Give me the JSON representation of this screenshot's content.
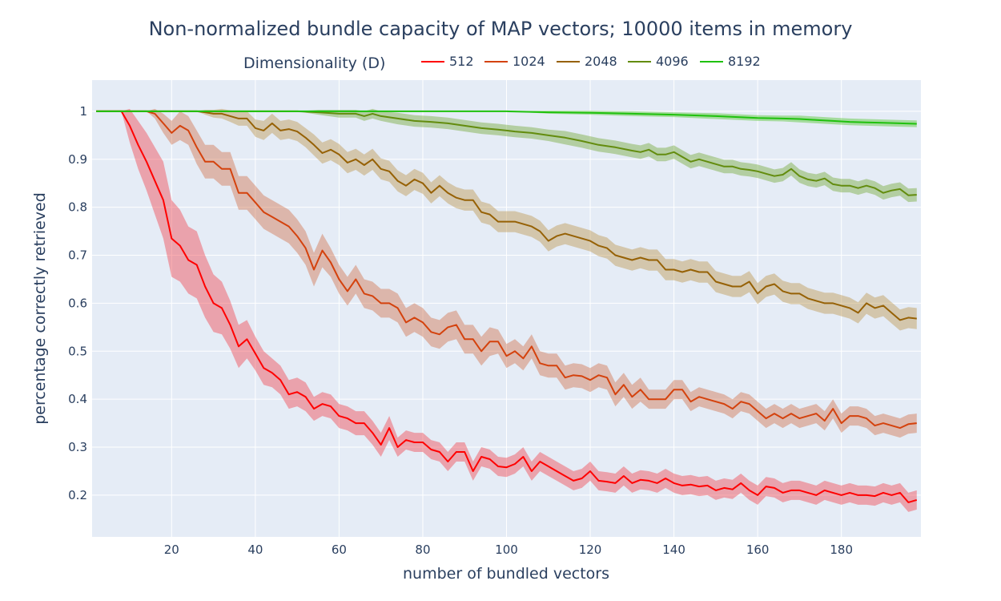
{
  "chart_data": {
    "type": "line",
    "title": "Non-normalized bundle capacity of MAP vectors; 10000 items in memory",
    "xlabel": "number of bundled vectors",
    "ylabel": "percentage correctly retrieved",
    "xlim": [
      1,
      199
    ],
    "ylim": [
      0.113,
      1.065
    ],
    "x_ticks": [
      20,
      40,
      60,
      80,
      100,
      120,
      140,
      160,
      180
    ],
    "y_ticks": [
      0.2,
      0.3,
      0.4,
      0.5,
      0.6,
      0.7,
      0.8,
      0.9,
      1
    ],
    "y_tick_labels": [
      "0.2",
      "0.3",
      "0.4",
      "0.5",
      "0.6",
      "0.7",
      "0.8",
      "0.9",
      "1"
    ],
    "grid": true,
    "legend": {
      "title": "Dimensionality (D)",
      "placement": "top"
    },
    "plot_background": "#e5ecf6",
    "series": [
      {
        "name": "512",
        "color": "#ff0000",
        "band_color": "rgba(240,60,70,0.42)",
        "x": [
          2,
          8,
          10,
          12,
          14,
          16,
          18,
          20,
          22,
          24,
          26,
          28,
          30,
          32,
          34,
          36,
          38,
          40,
          42,
          44,
          46,
          48,
          50,
          52,
          54,
          56,
          58,
          60,
          62,
          64,
          66,
          68,
          70,
          72,
          74,
          76,
          78,
          80,
          82,
          84,
          86,
          88,
          90,
          92,
          94,
          96,
          98,
          100,
          102,
          104,
          106,
          108,
          110,
          112,
          114,
          116,
          118,
          120,
          122,
          124,
          126,
          128,
          130,
          132,
          134,
          136,
          138,
          140,
          142,
          144,
          146,
          148,
          150,
          152,
          154,
          156,
          158,
          160,
          162,
          164,
          166,
          168,
          170,
          172,
          174,
          176,
          178,
          180,
          182,
          184,
          186,
          188,
          190,
          192,
          194,
          196,
          198
        ],
        "y": [
          1.0,
          1.0,
          0.97,
          0.93,
          0.895,
          0.855,
          0.815,
          0.735,
          0.72,
          0.69,
          0.68,
          0.635,
          0.6,
          0.59,
          0.555,
          0.51,
          0.525,
          0.495,
          0.465,
          0.455,
          0.44,
          0.41,
          0.415,
          0.405,
          0.38,
          0.39,
          0.385,
          0.365,
          0.36,
          0.35,
          0.35,
          0.33,
          0.305,
          0.34,
          0.3,
          0.315,
          0.31,
          0.31,
          0.295,
          0.29,
          0.27,
          0.29,
          0.29,
          0.25,
          0.28,
          0.275,
          0.26,
          0.258,
          0.265,
          0.28,
          0.25,
          0.27,
          0.26,
          0.25,
          0.24,
          0.23,
          0.235,
          0.25,
          0.23,
          0.228,
          0.225,
          0.24,
          0.225,
          0.232,
          0.23,
          0.225,
          0.235,
          0.225,
          0.22,
          0.222,
          0.218,
          0.22,
          0.21,
          0.215,
          0.212,
          0.225,
          0.21,
          0.2,
          0.218,
          0.215,
          0.205,
          0.21,
          0.21,
          0.205,
          0.2,
          0.21,
          0.205,
          0.2,
          0.205,
          0.2,
          0.2,
          0.198,
          0.205,
          0.2,
          0.205,
          0.185,
          0.19
        ],
        "band": [
          0.0,
          0.0,
          0.035,
          0.05,
          0.06,
          0.07,
          0.08,
          0.08,
          0.075,
          0.07,
          0.07,
          0.065,
          0.06,
          0.055,
          0.05,
          0.045,
          0.04,
          0.035,
          0.035,
          0.03,
          0.03,
          0.03,
          0.03,
          0.03,
          0.025,
          0.025,
          0.025,
          0.025,
          0.025,
          0.025,
          0.025,
          0.025,
          0.025,
          0.025,
          0.02,
          0.02,
          0.02,
          0.02,
          0.02,
          0.02,
          0.02,
          0.02,
          0.02,
          0.02,
          0.02,
          0.02,
          0.02,
          0.02,
          0.02,
          0.02,
          0.02,
          0.02,
          0.02,
          0.02,
          0.02,
          0.02,
          0.02,
          0.02,
          0.02,
          0.02,
          0.02,
          0.02,
          0.02,
          0.02,
          0.02,
          0.02,
          0.02,
          0.02,
          0.02,
          0.02,
          0.02,
          0.02,
          0.02,
          0.02,
          0.02,
          0.02,
          0.02,
          0.02,
          0.02,
          0.02,
          0.02,
          0.02,
          0.02,
          0.02,
          0.02,
          0.02,
          0.02,
          0.02,
          0.02,
          0.02,
          0.02,
          0.02,
          0.02,
          0.02,
          0.02,
          0.02,
          0.02
        ]
      },
      {
        "name": "1024",
        "color": "#d4420d",
        "band_color": "rgba(205,95,50,0.38)",
        "x": [
          2,
          14,
          16,
          18,
          20,
          22,
          24,
          26,
          28,
          30,
          32,
          34,
          36,
          38,
          40,
          42,
          44,
          46,
          48,
          50,
          52,
          54,
          56,
          58,
          60,
          62,
          64,
          66,
          68,
          70,
          72,
          74,
          76,
          78,
          80,
          82,
          84,
          86,
          88,
          90,
          92,
          94,
          96,
          98,
          100,
          102,
          104,
          106,
          108,
          110,
          112,
          114,
          116,
          118,
          120,
          122,
          124,
          126,
          128,
          130,
          132,
          134,
          136,
          138,
          140,
          142,
          144,
          146,
          148,
          150,
          152,
          154,
          156,
          158,
          160,
          162,
          164,
          166,
          168,
          170,
          172,
          174,
          176,
          178,
          180,
          182,
          184,
          186,
          188,
          190,
          192,
          194,
          196,
          198
        ],
        "y": [
          1.0,
          1.0,
          0.995,
          0.975,
          0.955,
          0.97,
          0.96,
          0.925,
          0.895,
          0.895,
          0.88,
          0.88,
          0.83,
          0.83,
          0.81,
          0.79,
          0.78,
          0.77,
          0.76,
          0.74,
          0.715,
          0.67,
          0.71,
          0.685,
          0.65,
          0.625,
          0.65,
          0.62,
          0.615,
          0.6,
          0.6,
          0.59,
          0.56,
          0.57,
          0.56,
          0.54,
          0.535,
          0.55,
          0.555,
          0.525,
          0.525,
          0.5,
          0.52,
          0.52,
          0.49,
          0.5,
          0.485,
          0.51,
          0.475,
          0.47,
          0.47,
          0.445,
          0.45,
          0.448,
          0.44,
          0.45,
          0.445,
          0.41,
          0.43,
          0.405,
          0.42,
          0.4,
          0.4,
          0.4,
          0.42,
          0.42,
          0.395,
          0.405,
          0.4,
          0.395,
          0.39,
          0.38,
          0.395,
          0.39,
          0.375,
          0.36,
          0.37,
          0.36,
          0.37,
          0.36,
          0.365,
          0.37,
          0.355,
          0.38,
          0.35,
          0.365,
          0.365,
          0.36,
          0.345,
          0.35,
          0.345,
          0.34,
          0.348,
          0.35
        ],
        "band": [
          0.0,
          0.0,
          0.01,
          0.02,
          0.025,
          0.03,
          0.03,
          0.035,
          0.035,
          0.035,
          0.035,
          0.035,
          0.035,
          0.035,
          0.035,
          0.035,
          0.035,
          0.035,
          0.035,
          0.035,
          0.035,
          0.035,
          0.035,
          0.03,
          0.03,
          0.03,
          0.03,
          0.03,
          0.03,
          0.03,
          0.03,
          0.03,
          0.03,
          0.03,
          0.03,
          0.03,
          0.03,
          0.03,
          0.03,
          0.03,
          0.03,
          0.03,
          0.03,
          0.025,
          0.025,
          0.025,
          0.025,
          0.025,
          0.025,
          0.025,
          0.025,
          0.025,
          0.025,
          0.025,
          0.025,
          0.025,
          0.025,
          0.025,
          0.025,
          0.025,
          0.025,
          0.02,
          0.02,
          0.02,
          0.02,
          0.02,
          0.02,
          0.02,
          0.02,
          0.02,
          0.02,
          0.02,
          0.02,
          0.02,
          0.02,
          0.02,
          0.02,
          0.02,
          0.02,
          0.02,
          0.02,
          0.02,
          0.02,
          0.02,
          0.02,
          0.02,
          0.02,
          0.02,
          0.02,
          0.02,
          0.02,
          0.02,
          0.02,
          0.02
        ]
      },
      {
        "name": "2048",
        "color": "#966105",
        "band_color": "rgba(185,145,70,0.42)",
        "x": [
          2,
          26,
          28,
          30,
          32,
          34,
          36,
          38,
          40,
          42,
          44,
          46,
          48,
          50,
          52,
          54,
          56,
          58,
          60,
          62,
          64,
          66,
          68,
          70,
          72,
          74,
          76,
          78,
          80,
          82,
          84,
          86,
          88,
          90,
          92,
          94,
          96,
          98,
          100,
          102,
          104,
          106,
          108,
          110,
          112,
          114,
          116,
          118,
          120,
          122,
          124,
          126,
          128,
          130,
          132,
          134,
          136,
          138,
          140,
          142,
          144,
          146,
          148,
          150,
          152,
          154,
          156,
          158,
          160,
          162,
          164,
          166,
          168,
          170,
          172,
          174,
          176,
          178,
          180,
          182,
          184,
          186,
          188,
          190,
          192,
          194,
          196,
          198
        ],
        "y": [
          1.0,
          1.0,
          0.998,
          0.995,
          0.995,
          0.99,
          0.985,
          0.985,
          0.965,
          0.96,
          0.975,
          0.96,
          0.963,
          0.958,
          0.945,
          0.93,
          0.913,
          0.92,
          0.91,
          0.893,
          0.9,
          0.888,
          0.9,
          0.88,
          0.875,
          0.855,
          0.845,
          0.858,
          0.85,
          0.83,
          0.845,
          0.83,
          0.82,
          0.815,
          0.815,
          0.79,
          0.785,
          0.77,
          0.77,
          0.77,
          0.765,
          0.76,
          0.75,
          0.73,
          0.74,
          0.745,
          0.74,
          0.735,
          0.73,
          0.72,
          0.715,
          0.7,
          0.695,
          0.69,
          0.695,
          0.69,
          0.69,
          0.67,
          0.67,
          0.665,
          0.67,
          0.665,
          0.665,
          0.645,
          0.64,
          0.635,
          0.635,
          0.645,
          0.62,
          0.635,
          0.64,
          0.625,
          0.62,
          0.62,
          0.61,
          0.605,
          0.6,
          0.6,
          0.595,
          0.59,
          0.58,
          0.6,
          0.59,
          0.595,
          0.58,
          0.565,
          0.57,
          0.568
        ],
        "band": [
          0.0,
          0.0,
          0.005,
          0.008,
          0.01,
          0.012,
          0.015,
          0.015,
          0.018,
          0.02,
          0.02,
          0.02,
          0.02,
          0.02,
          0.02,
          0.022,
          0.022,
          0.022,
          0.022,
          0.022,
          0.022,
          0.022,
          0.022,
          0.022,
          0.022,
          0.022,
          0.022,
          0.022,
          0.022,
          0.022,
          0.022,
          0.022,
          0.022,
          0.022,
          0.022,
          0.022,
          0.022,
          0.022,
          0.022,
          0.022,
          0.022,
          0.022,
          0.022,
          0.022,
          0.022,
          0.022,
          0.022,
          0.022,
          0.022,
          0.022,
          0.022,
          0.022,
          0.022,
          0.022,
          0.022,
          0.022,
          0.022,
          0.022,
          0.022,
          0.022,
          0.022,
          0.022,
          0.022,
          0.022,
          0.022,
          0.022,
          0.022,
          0.022,
          0.022,
          0.022,
          0.022,
          0.022,
          0.022,
          0.022,
          0.022,
          0.022,
          0.022,
          0.022,
          0.022,
          0.022,
          0.022,
          0.022,
          0.022,
          0.022,
          0.022,
          0.022,
          0.022,
          0.022
        ]
      },
      {
        "name": "4096",
        "color": "#638c0e",
        "band_color": "rgba(110,165,45,0.42)",
        "x": [
          2,
          50,
          55,
          60,
          64,
          66,
          68,
          70,
          74,
          78,
          82,
          86,
          90,
          94,
          98,
          102,
          106,
          110,
          114,
          118,
          122,
          126,
          130,
          132,
          134,
          136,
          138,
          140,
          142,
          144,
          146,
          148,
          150,
          152,
          154,
          156,
          158,
          160,
          162,
          164,
          166,
          168,
          170,
          172,
          174,
          176,
          178,
          180,
          182,
          184,
          186,
          188,
          190,
          192,
          194,
          196,
          198
        ],
        "y": [
          1.0,
          1.0,
          0.998,
          0.995,
          0.995,
          0.99,
          0.995,
          0.99,
          0.985,
          0.98,
          0.978,
          0.975,
          0.97,
          0.965,
          0.962,
          0.958,
          0.955,
          0.95,
          0.945,
          0.938,
          0.93,
          0.925,
          0.918,
          0.915,
          0.92,
          0.91,
          0.91,
          0.915,
          0.905,
          0.895,
          0.9,
          0.895,
          0.89,
          0.885,
          0.885,
          0.88,
          0.878,
          0.875,
          0.87,
          0.865,
          0.868,
          0.88,
          0.865,
          0.858,
          0.855,
          0.86,
          0.848,
          0.845,
          0.845,
          0.84,
          0.845,
          0.84,
          0.83,
          0.835,
          0.838,
          0.825,
          0.826
        ],
        "band": [
          0.0,
          0.0,
          0.005,
          0.008,
          0.008,
          0.01,
          0.01,
          0.01,
          0.012,
          0.012,
          0.012,
          0.012,
          0.012,
          0.012,
          0.012,
          0.012,
          0.012,
          0.012,
          0.014,
          0.014,
          0.014,
          0.014,
          0.014,
          0.014,
          0.014,
          0.014,
          0.014,
          0.014,
          0.014,
          0.014,
          0.014,
          0.014,
          0.014,
          0.014,
          0.014,
          0.014,
          0.014,
          0.014,
          0.014,
          0.014,
          0.014,
          0.014,
          0.014,
          0.014,
          0.014,
          0.014,
          0.014,
          0.014,
          0.014,
          0.014,
          0.014,
          0.014,
          0.014,
          0.014,
          0.014,
          0.014,
          0.014
        ]
      },
      {
        "name": "8192",
        "color": "#1fc10d",
        "band_color": "rgba(95,200,60,0.48)",
        "x": [
          2,
          100,
          110,
          120,
          130,
          140,
          150,
          160,
          166,
          170,
          174,
          178,
          182,
          186,
          190,
          194,
          198
        ],
        "y": [
          1.0,
          1.0,
          0.998,
          0.997,
          0.995,
          0.993,
          0.99,
          0.986,
          0.985,
          0.984,
          0.982,
          0.98,
          0.978,
          0.977,
          0.976,
          0.975,
          0.974
        ],
        "band": [
          0.0,
          0.0,
          0.003,
          0.004,
          0.005,
          0.005,
          0.006,
          0.006,
          0.006,
          0.007,
          0.007,
          0.007,
          0.007,
          0.007,
          0.007,
          0.007,
          0.007
        ]
      }
    ]
  }
}
